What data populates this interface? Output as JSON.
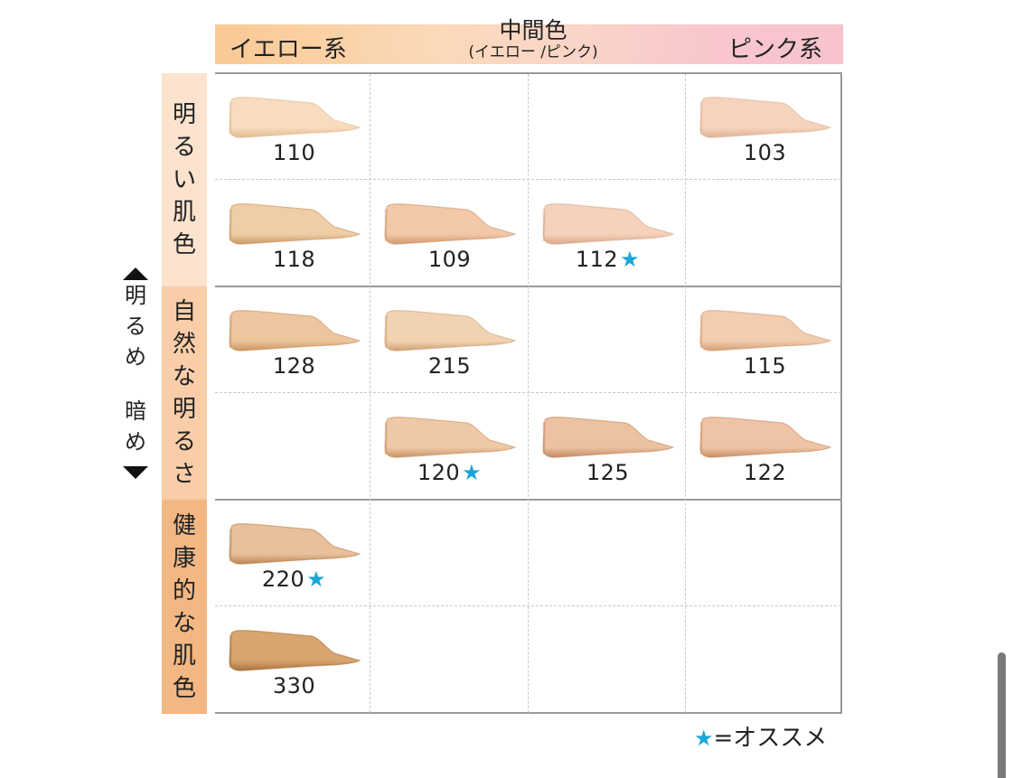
{
  "header": {
    "yellow_label": "イエロー系",
    "middle_label": "中間色",
    "middle_sub": "(イエロー /ピンク)",
    "pink_label": "ピンク系"
  },
  "row_groups": [
    {
      "label": [
        "明",
        "る",
        "い",
        "肌",
        "色"
      ],
      "color": "#fbe3cd"
    },
    {
      "label": [
        "自",
        "然",
        "な",
        "明",
        "る",
        "さ"
      ],
      "color": "#f8cda8"
    },
    {
      "label": [
        "健",
        "康",
        "的",
        "な",
        "肌",
        "色"
      ],
      "color": "#f2b783"
    }
  ],
  "axis": {
    "top_label": [
      "明",
      "る",
      "め"
    ],
    "bottom_label": [
      "暗",
      "め"
    ],
    "up_icon": "triangle-up-icon",
    "down_icon": "triangle-down-icon"
  },
  "cells": [
    {
      "row": 0,
      "col": 0,
      "shade": "110",
      "recommended": false,
      "color": "#f8dcc0",
      "edge": "#e2b98e"
    },
    {
      "row": 0,
      "col": 3,
      "shade": "103",
      "recommended": false,
      "color": "#f6d3bd",
      "edge": "#e0b293"
    },
    {
      "row": 1,
      "col": 0,
      "shade": "118",
      "recommended": false,
      "color": "#efcda6",
      "edge": "#c99a63"
    },
    {
      "row": 1,
      "col": 1,
      "shade": "109",
      "recommended": false,
      "color": "#f2c8a8",
      "edge": "#d09a70"
    },
    {
      "row": 1,
      "col": 2,
      "shade": "112",
      "recommended": true,
      "color": "#f5d2bb",
      "edge": "#d9a88a"
    },
    {
      "row": 2,
      "col": 0,
      "shade": "128",
      "recommended": false,
      "color": "#edc69f",
      "edge": "#c99462"
    },
    {
      "row": 2,
      "col": 1,
      "shade": "215",
      "recommended": false,
      "color": "#f1d3b2",
      "edge": "#cfa175"
    },
    {
      "row": 2,
      "col": 3,
      "shade": "115",
      "recommended": false,
      "color": "#f2cdb0",
      "edge": "#d49e76"
    },
    {
      "row": 3,
      "col": 1,
      "shade": "120",
      "recommended": true,
      "color": "#eec9a6",
      "edge": "#c99467"
    },
    {
      "row": 3,
      "col": 2,
      "shade": "125",
      "recommended": false,
      "color": "#ecc2a2",
      "edge": "#c48c62"
    },
    {
      "row": 3,
      "col": 3,
      "shade": "122",
      "recommended": false,
      "color": "#eec4a6",
      "edge": "#c98f68"
    },
    {
      "row": 4,
      "col": 0,
      "shade": "220",
      "recommended": true,
      "color": "#e9c09c",
      "edge": "#b98552"
    },
    {
      "row": 5,
      "col": 0,
      "shade": "330",
      "recommended": false,
      "color": "#d9a56f",
      "edge": "#a8723c"
    }
  ],
  "star_glyph": "★",
  "legend": {
    "star": "★",
    "text": "=オススメ"
  },
  "colors": {
    "star": "#1aa6d8",
    "grid_solid": "#999999",
    "grid_dash": "#c8c8c8"
  }
}
